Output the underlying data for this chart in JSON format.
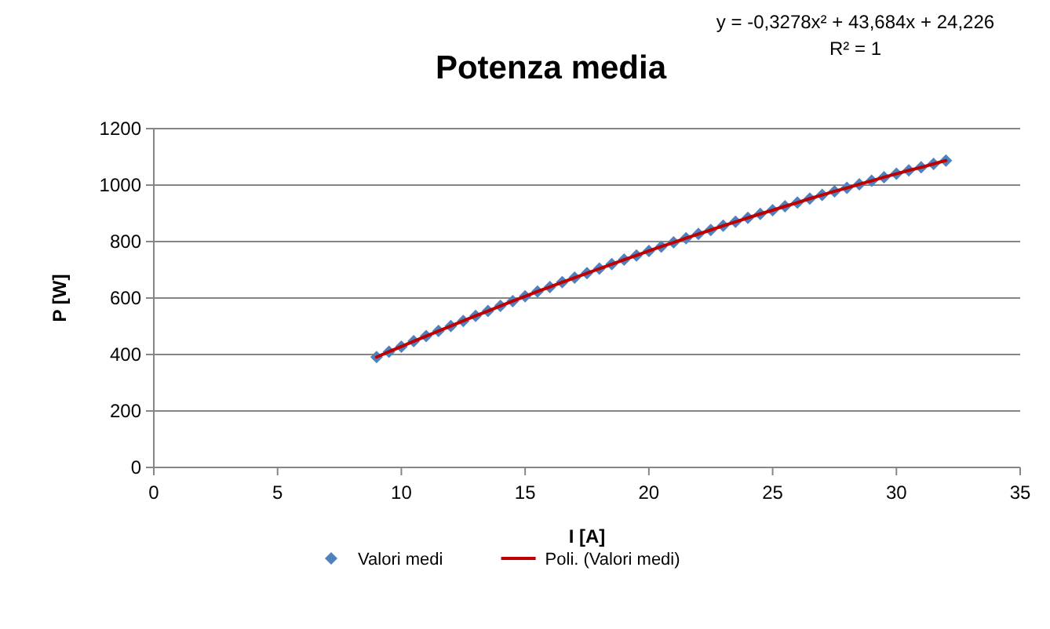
{
  "chart_data": {
    "type": "scatter",
    "title": "Potenza media",
    "xlabel": "I [A]",
    "ylabel": "P [W]",
    "annotations": [
      "y = -0,3278x² + 43,684x + 24,226",
      "R² = 1"
    ],
    "xlim": [
      0,
      35
    ],
    "xticks": [
      0,
      5,
      10,
      15,
      20,
      25,
      30,
      35
    ],
    "ylim": [
      0,
      1200
    ],
    "yticks": [
      0,
      200,
      400,
      600,
      800,
      1000,
      1200
    ],
    "grid": "y",
    "legend": "bottom",
    "series": [
      {
        "name": "Valori medi",
        "marker": "diamond",
        "color": "#4f81bd",
        "x": [
          9,
          9.5,
          10,
          10.5,
          11,
          11.5,
          12,
          12.5,
          13,
          13.5,
          14,
          14.5,
          15,
          15.5,
          16,
          16.5,
          17,
          17.5,
          18,
          18.5,
          19,
          19.5,
          20,
          20.5,
          21,
          21.5,
          22,
          22.5,
          23,
          23.5,
          24,
          24.5,
          25,
          25.5,
          26,
          26.5,
          27,
          27.5,
          28,
          28.5,
          29,
          29.5,
          30,
          30.5,
          31,
          31.5,
          32
        ],
        "values": [
          391,
          410,
          428,
          447,
          465,
          483,
          501,
          519,
          537,
          554,
          572,
          589,
          606,
          623,
          639,
          656,
          672,
          688,
          704,
          720,
          736,
          751,
          767,
          782,
          797,
          812,
          827,
          841,
          856,
          870,
          884,
          898,
          911,
          925,
          938,
          952,
          965,
          978,
          990,
          1003,
          1015,
          1028,
          1040,
          1052,
          1063,
          1075,
          1087
        ]
      },
      {
        "name": "Poli. (Valori medi)",
        "type": "line",
        "marker": "none",
        "line_style": "solid",
        "color": "#c00000",
        "x": [
          9,
          9.5,
          10,
          10.5,
          11,
          11.5,
          12,
          12.5,
          13,
          13.5,
          14,
          14.5,
          15,
          15.5,
          16,
          16.5,
          17,
          17.5,
          18,
          18.5,
          19,
          19.5,
          20,
          20.5,
          21,
          21.5,
          22,
          22.5,
          23,
          23.5,
          24,
          24.5,
          25,
          25.5,
          26,
          26.5,
          27,
          27.5,
          28,
          28.5,
          29,
          29.5,
          30,
          30.5,
          31,
          31.5,
          32
        ],
        "values": [
          391,
          410,
          428,
          447,
          465,
          483,
          501,
          519,
          537,
          554,
          572,
          589,
          606,
          623,
          639,
          656,
          672,
          688,
          704,
          720,
          736,
          751,
          767,
          782,
          797,
          812,
          827,
          841,
          856,
          870,
          884,
          898,
          911,
          925,
          938,
          952,
          965,
          978,
          990,
          1003,
          1015,
          1028,
          1040,
          1052,
          1063,
          1075,
          1087
        ]
      }
    ]
  }
}
